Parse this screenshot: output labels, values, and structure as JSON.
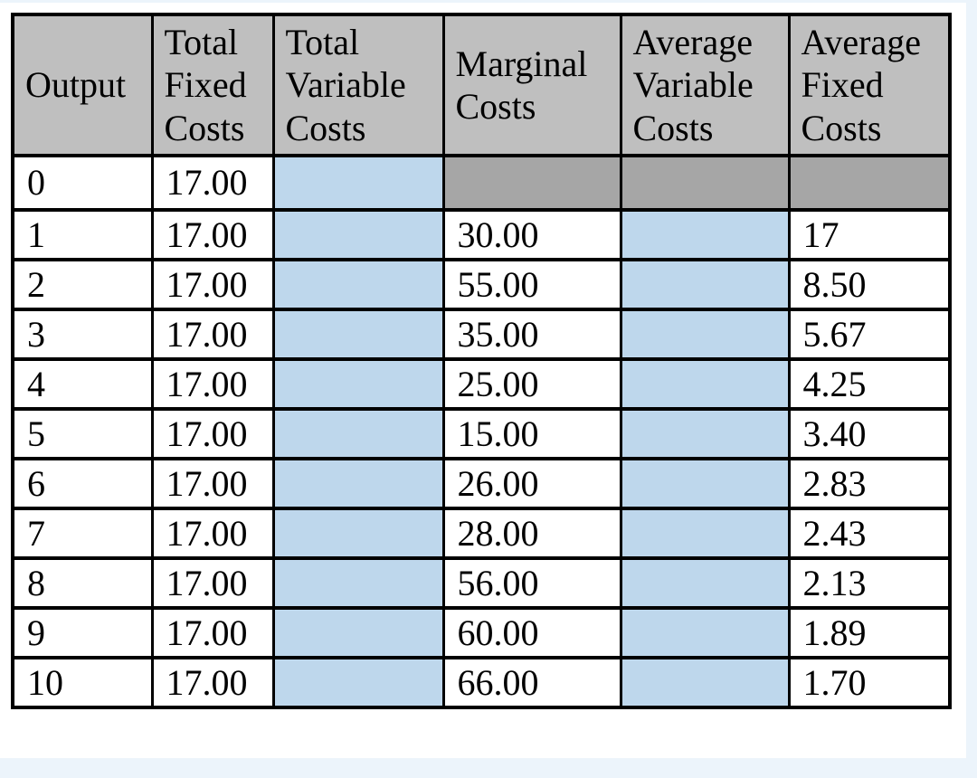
{
  "page": {
    "background_color": "#ecf4fb",
    "canvas_color": "#ffffff"
  },
  "table": {
    "title": "cost-schedule-table",
    "colors": {
      "header_bg": "#bfbfbf",
      "disabled_bg": "#a6a6a6",
      "input_bg": "#bed7ec",
      "border": "#000000",
      "text": "#000000"
    },
    "columns": [
      {
        "key": "output",
        "label": "Output"
      },
      {
        "key": "total-fixed-costs",
        "label": "Total Fixed Costs"
      },
      {
        "key": "total-variable-costs",
        "label": "Total Variable Costs"
      },
      {
        "key": "marginal-costs",
        "label": "Marginal Costs"
      },
      {
        "key": "average-variable-costs",
        "label": "Average Variable Costs"
      },
      {
        "key": "average-fixed-costs",
        "label": "Average Fixed Costs"
      }
    ],
    "rows": [
      {
        "cells": [
          {
            "text": "0",
            "type": "plain"
          },
          {
            "text": "17.00",
            "type": "plain"
          },
          {
            "text": "",
            "type": "input"
          },
          {
            "text": "",
            "type": "disabled"
          },
          {
            "text": "",
            "type": "disabled"
          },
          {
            "text": "",
            "type": "disabled"
          }
        ]
      },
      {
        "cells": [
          {
            "text": "1",
            "type": "plain"
          },
          {
            "text": "17.00",
            "type": "plain"
          },
          {
            "text": "",
            "type": "input"
          },
          {
            "text": "30.00",
            "type": "plain"
          },
          {
            "text": "",
            "type": "input"
          },
          {
            "text": "17",
            "type": "plain"
          }
        ]
      },
      {
        "cells": [
          {
            "text": "2",
            "type": "plain"
          },
          {
            "text": "17.00",
            "type": "plain"
          },
          {
            "text": "",
            "type": "input"
          },
          {
            "text": "55.00",
            "type": "plain"
          },
          {
            "text": "",
            "type": "input"
          },
          {
            "text": "8.50",
            "type": "plain"
          }
        ]
      },
      {
        "cells": [
          {
            "text": "3",
            "type": "plain"
          },
          {
            "text": "17.00",
            "type": "plain"
          },
          {
            "text": "",
            "type": "input"
          },
          {
            "text": "35.00",
            "type": "plain"
          },
          {
            "text": "",
            "type": "input"
          },
          {
            "text": "5.67",
            "type": "plain"
          }
        ]
      },
      {
        "cells": [
          {
            "text": "4",
            "type": "plain"
          },
          {
            "text": "17.00",
            "type": "plain"
          },
          {
            "text": "",
            "type": "input"
          },
          {
            "text": "25.00",
            "type": "plain"
          },
          {
            "text": "",
            "type": "input"
          },
          {
            "text": "4.25",
            "type": "plain"
          }
        ]
      },
      {
        "cells": [
          {
            "text": "5",
            "type": "plain"
          },
          {
            "text": "17.00",
            "type": "plain"
          },
          {
            "text": "",
            "type": "input"
          },
          {
            "text": "15.00",
            "type": "plain"
          },
          {
            "text": "",
            "type": "input"
          },
          {
            "text": "3.40",
            "type": "plain"
          }
        ]
      },
      {
        "cells": [
          {
            "text": "6",
            "type": "plain"
          },
          {
            "text": "17.00",
            "type": "plain"
          },
          {
            "text": "",
            "type": "input"
          },
          {
            "text": "26.00",
            "type": "plain"
          },
          {
            "text": "",
            "type": "input"
          },
          {
            "text": "2.83",
            "type": "plain"
          }
        ]
      },
      {
        "cells": [
          {
            "text": "7",
            "type": "plain"
          },
          {
            "text": "17.00",
            "type": "plain"
          },
          {
            "text": "",
            "type": "input"
          },
          {
            "text": "28.00",
            "type": "plain"
          },
          {
            "text": "",
            "type": "input"
          },
          {
            "text": "2.43",
            "type": "plain"
          }
        ]
      },
      {
        "cells": [
          {
            "text": "8",
            "type": "plain"
          },
          {
            "text": "17.00",
            "type": "plain"
          },
          {
            "text": "",
            "type": "input"
          },
          {
            "text": "56.00",
            "type": "plain"
          },
          {
            "text": "",
            "type": "input"
          },
          {
            "text": "2.13",
            "type": "plain"
          }
        ]
      },
      {
        "cells": [
          {
            "text": "9",
            "type": "plain"
          },
          {
            "text": "17.00",
            "type": "plain"
          },
          {
            "text": "",
            "type": "input"
          },
          {
            "text": "60.00",
            "type": "plain"
          },
          {
            "text": "",
            "type": "input"
          },
          {
            "text": "1.89",
            "type": "plain"
          }
        ]
      },
      {
        "cells": [
          {
            "text": "10",
            "type": "plain"
          },
          {
            "text": "17.00",
            "type": "plain"
          },
          {
            "text": "",
            "type": "input"
          },
          {
            "text": "66.00",
            "type": "plain"
          },
          {
            "text": "",
            "type": "input"
          },
          {
            "text": "1.70",
            "type": "plain"
          }
        ]
      }
    ]
  },
  "chart_data": {
    "type": "table",
    "columns": [
      "Output",
      "Total Fixed Costs",
      "Total Variable Costs",
      "Marginal Costs",
      "Average Variable Costs",
      "Average Fixed Costs"
    ],
    "rows": [
      [
        "0",
        "17.00",
        "",
        "",
        "",
        ""
      ],
      [
        "1",
        "17.00",
        "",
        "30.00",
        "",
        "17"
      ],
      [
        "2",
        "17.00",
        "",
        "55.00",
        "",
        "8.50"
      ],
      [
        "3",
        "17.00",
        "",
        "35.00",
        "",
        "5.67"
      ],
      [
        "4",
        "17.00",
        "",
        "25.00",
        "",
        "4.25"
      ],
      [
        "5",
        "17.00",
        "",
        "15.00",
        "",
        "3.40"
      ],
      [
        "6",
        "17.00",
        "",
        "26.00",
        "",
        "2.83"
      ],
      [
        "7",
        "17.00",
        "",
        "28.00",
        "",
        "2.43"
      ],
      [
        "8",
        "17.00",
        "",
        "56.00",
        "",
        "2.13"
      ],
      [
        "9",
        "17.00",
        "",
        "60.00",
        "",
        "1.89"
      ],
      [
        "10",
        "17.00",
        "",
        "66.00",
        "",
        "1.70"
      ]
    ],
    "notes": {
      "blank_blue_cells": "Total Variable Costs (rows 0-10) and Average Variable Costs (rows 1-10) are empty fill-in cells",
      "gray_disabled_cells": "Marginal, Average Variable and Average Fixed Costs cells in row 0 are shaded out"
    }
  }
}
